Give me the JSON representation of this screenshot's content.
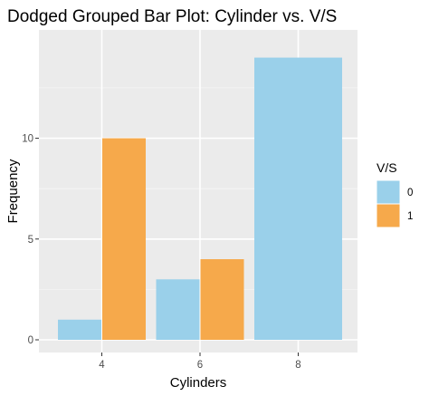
{
  "chart_data": {
    "type": "bar",
    "title": "Dodged Grouped Bar Plot: Cylinder vs. V/S",
    "xlabel": "Cylinders",
    "ylabel": "Frequency",
    "categories": [
      "4",
      "6",
      "8"
    ],
    "ylim": [
      0,
      14.7
    ],
    "y_ticks": [
      0,
      5,
      10
    ],
    "grid": true,
    "legend": {
      "title": "V/S",
      "placement": "right"
    },
    "series": [
      {
        "name": "0",
        "color": "#9ad0ea",
        "values": [
          1,
          3,
          14
        ]
      },
      {
        "name": "1",
        "color": "#f6a94b",
        "values": [
          10,
          4,
          0
        ]
      }
    ]
  }
}
